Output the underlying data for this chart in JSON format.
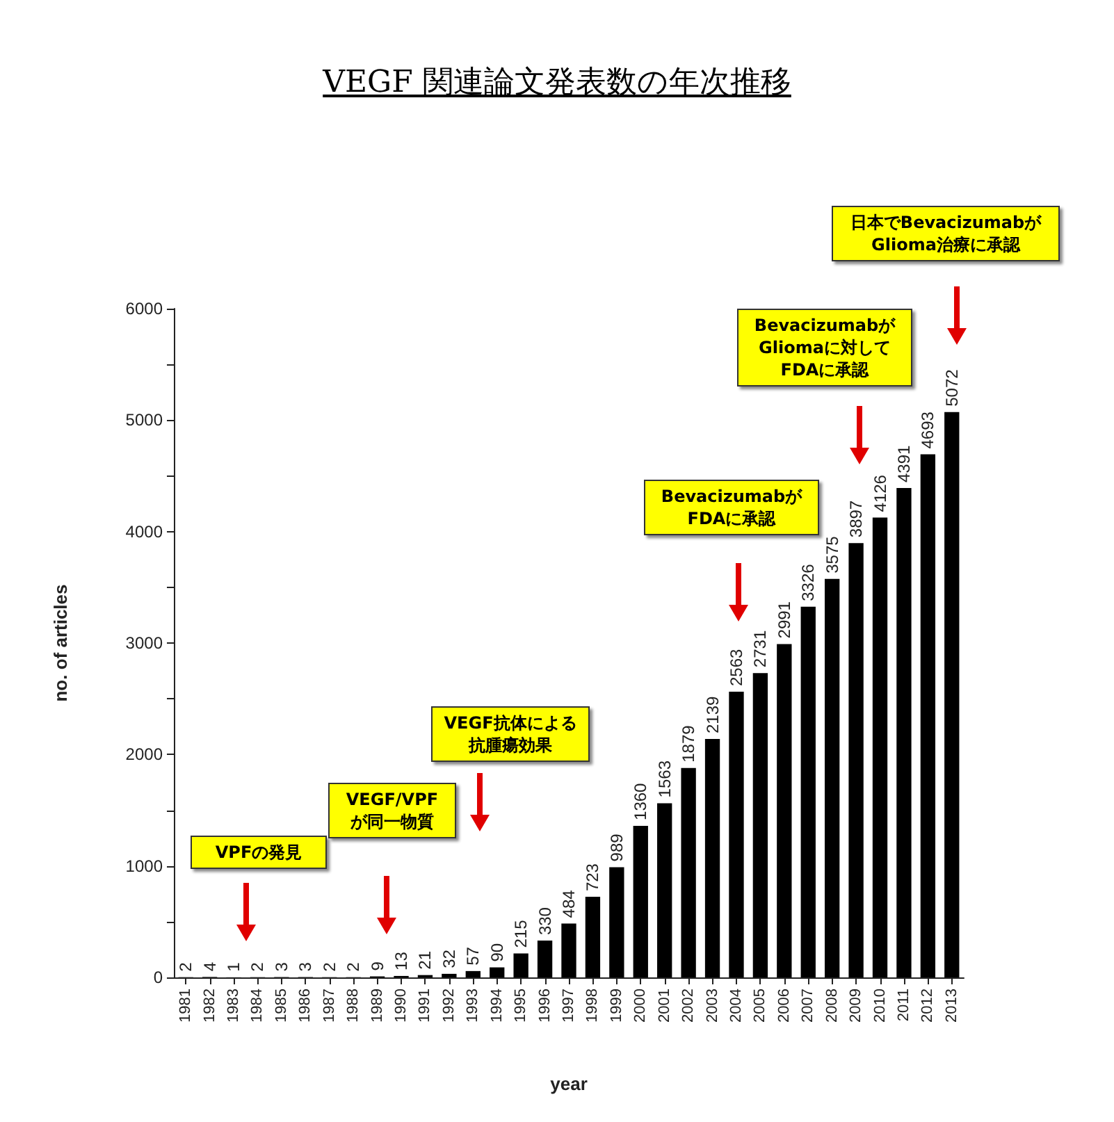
{
  "chart_data": {
    "type": "bar",
    "title": "VEGF 関連論文発表数の年次推移",
    "xlabel": "year",
    "ylabel": "no. of articles",
    "categories": [
      "1981",
      "1982",
      "1983",
      "1984",
      "1985",
      "1986",
      "1987",
      "1988",
      "1989",
      "1990",
      "1991",
      "1992",
      "1993",
      "1994",
      "1995",
      "1996",
      "1997",
      "1998",
      "1999",
      "2000",
      "2001",
      "2002",
      "2003",
      "2004",
      "2005",
      "2006",
      "2007",
      "2008",
      "2009",
      "2010",
      "2011",
      "2012",
      "2013"
    ],
    "values": [
      2,
      4,
      1,
      2,
      3,
      3,
      2,
      2,
      9,
      13,
      21,
      32,
      57,
      90,
      215,
      330,
      484,
      723,
      989,
      1360,
      1563,
      1879,
      2139,
      2563,
      2731,
      2991,
      3326,
      3575,
      3897,
      4126,
      4391,
      4693,
      5072
    ],
    "color": "#000000",
    "data_labels": true,
    "grid": false,
    "ylim": [
      0,
      6000
    ],
    "yticks": [
      0,
      {
        "value": 500,
        "label": null
      },
      1000,
      {
        "value": 1500,
        "label": null
      },
      2000,
      {
        "value": 2500,
        "label": null
      },
      3000,
      {
        "value": 3500,
        "label": null
      },
      4000,
      {
        "value": 4500,
        "label": null
      },
      5000,
      {
        "value": 5500,
        "label": null
      },
      6000
    ],
    "annotations": [
      "VPFの発見",
      "VEGF/VPFが同一物質",
      "VEGF抗体による抗腫瘍効果",
      "BevacizumabがFDAに承認",
      "BevacizumabがGliomaに対してFDAに承認",
      "日本でBevacizumabがGlioma治療に承認"
    ]
  }
}
